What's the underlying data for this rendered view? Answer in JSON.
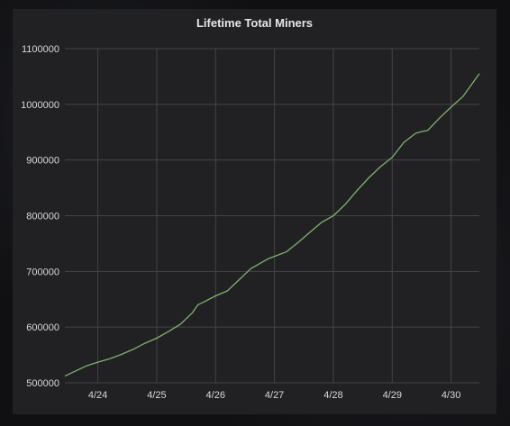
{
  "chart_data": {
    "type": "line",
    "title": "Lifetime Total Miners",
    "xlabel": "",
    "ylabel": "",
    "x_tick_labels": [
      "4/24",
      "4/25",
      "4/26",
      "4/27",
      "4/28",
      "4/29",
      "4/30"
    ],
    "x_tick_positions_days": [
      1,
      2,
      3,
      4,
      5,
      6,
      7
    ],
    "xlim_days": [
      0.44,
      7.48
    ],
    "ylim": [
      500000,
      1100000
    ],
    "y_ticks": [
      500000,
      600000,
      700000,
      800000,
      900000,
      1000000,
      1100000
    ],
    "y_tick_labels": [
      "500000",
      "600000",
      "700000",
      "800000",
      "900000",
      "1000000",
      "1100000"
    ],
    "grid": true,
    "line_color": "#7eb26d",
    "series": [
      {
        "x_days": [
          0.44,
          0.6,
          0.8,
          1.0,
          1.2,
          1.4,
          1.6,
          1.8,
          2.0,
          2.2,
          2.4,
          2.6,
          2.7,
          2.8,
          3.0,
          3.2,
          3.4,
          3.6,
          3.8,
          3.9,
          4.0,
          4.2,
          4.4,
          4.6,
          4.8,
          5.0,
          5.2,
          5.4,
          5.6,
          5.8,
          6.0,
          6.2,
          6.4,
          6.5,
          6.6,
          6.8,
          7.0,
          7.2,
          7.48
        ],
        "values": [
          512000,
          520000,
          530000,
          537000,
          543000,
          551000,
          560000,
          571000,
          580000,
          592000,
          605000,
          625000,
          640000,
          645000,
          656000,
          665000,
          685000,
          705000,
          717000,
          723000,
          727000,
          735000,
          752000,
          770000,
          788000,
          800000,
          820000,
          845000,
          868000,
          888000,
          905000,
          932000,
          948000,
          951000,
          953000,
          975000,
          995000,
          1014000,
          1055000
        ]
      }
    ]
  }
}
